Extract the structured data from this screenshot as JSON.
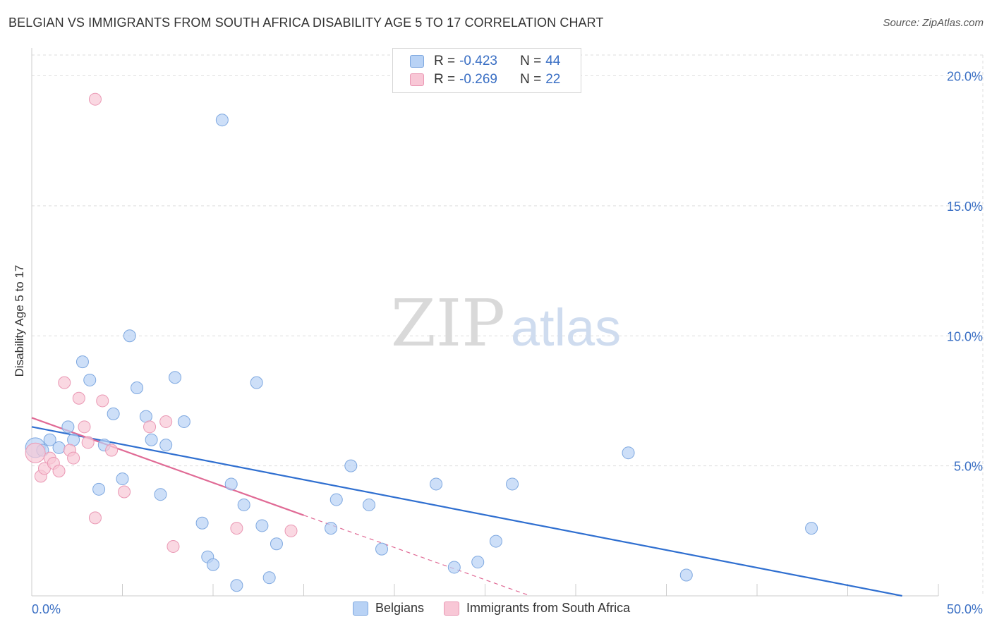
{
  "header": {
    "title": "BELGIAN VS IMMIGRANTS FROM SOUTH AFRICA DISABILITY AGE 5 TO 17 CORRELATION CHART",
    "source": "Source: ZipAtlas.com"
  },
  "watermark": {
    "zip": "ZIP",
    "atlas": "atlas"
  },
  "legend": {
    "rows": [
      {
        "r_label": "R = ",
        "r_value": "-0.423",
        "n_label": "N = ",
        "n_value": "44"
      },
      {
        "r_label": "R = ",
        "r_value": "-0.269",
        "n_label": "N = ",
        "n_value": "22"
      }
    ]
  },
  "colors": {
    "blue_fill": "#b8d2f5",
    "blue_stroke": "#7ea8e0",
    "blue_line": "#2f6fd0",
    "pink_fill": "#f8c7d6",
    "pink_stroke": "#ea98b4",
    "pink_line": "#e06a95",
    "axis_text": "#3a6fc4",
    "grid": "#dddddd"
  },
  "chart_data": {
    "type": "scatter",
    "title": "BELGIAN VS IMMIGRANTS FROM SOUTH AFRICA DISABILITY AGE 5 TO 17 CORRELATION CHART",
    "xlabel": "",
    "ylabel": "Disability Age 5 to 17",
    "xlim": [
      0,
      50
    ],
    "ylim": [
      0,
      20.8
    ],
    "x_tick_labels": [
      "0.0%",
      "50.0%"
    ],
    "y_ticks": [
      5,
      10,
      15,
      20
    ],
    "y_tick_labels": [
      "5.0%",
      "10.0%",
      "15.0%",
      "20.0%"
    ],
    "grid": true,
    "legend_position": "bottom",
    "series": [
      {
        "name": "Belgians",
        "color": "blue",
        "r": -0.423,
        "n": 44,
        "trend": {
          "x0": 0,
          "y0": 6.5,
          "x1": 48,
          "y1": 0
        },
        "points": [
          [
            0.2,
            5.7
          ],
          [
            0.6,
            5.6
          ],
          [
            1.0,
            6.0
          ],
          [
            1.5,
            5.7
          ],
          [
            2.0,
            6.5
          ],
          [
            2.3,
            6.0
          ],
          [
            2.8,
            9.0
          ],
          [
            3.2,
            8.3
          ],
          [
            3.7,
            4.1
          ],
          [
            4.0,
            5.8
          ],
          [
            4.5,
            7.0
          ],
          [
            5.0,
            4.5
          ],
          [
            5.4,
            10.0
          ],
          [
            5.8,
            8.0
          ],
          [
            6.3,
            6.9
          ],
          [
            6.6,
            6.0
          ],
          [
            7.1,
            3.9
          ],
          [
            7.4,
            5.8
          ],
          [
            7.9,
            8.4
          ],
          [
            8.4,
            6.7
          ],
          [
            9.4,
            2.8
          ],
          [
            9.7,
            1.5
          ],
          [
            10.0,
            1.2
          ],
          [
            10.5,
            18.3
          ],
          [
            11.0,
            4.3
          ],
          [
            11.3,
            0.4
          ],
          [
            11.7,
            3.5
          ],
          [
            12.4,
            8.2
          ],
          [
            12.7,
            2.7
          ],
          [
            13.1,
            0.7
          ],
          [
            13.5,
            2.0
          ],
          [
            16.5,
            2.6
          ],
          [
            16.8,
            3.7
          ],
          [
            17.6,
            5.0
          ],
          [
            18.6,
            3.5
          ],
          [
            19.3,
            1.8
          ],
          [
            22.3,
            4.3
          ],
          [
            23.3,
            1.1
          ],
          [
            24.6,
            1.3
          ],
          [
            25.6,
            2.1
          ],
          [
            26.5,
            4.3
          ],
          [
            32.9,
            5.5
          ],
          [
            36.1,
            0.8
          ],
          [
            43.0,
            2.6
          ]
        ]
      },
      {
        "name": "Immigrants from South Africa",
        "color": "pink",
        "r": -0.269,
        "n": 22,
        "trend": {
          "x0": 0,
          "y0": 6.85,
          "x1": 15,
          "y1": 3.1
        },
        "trend_dashed_to": {
          "x1": 27.5,
          "y1": 0
        },
        "points": [
          [
            0.2,
            5.5
          ],
          [
            0.5,
            4.6
          ],
          [
            0.7,
            4.9
          ],
          [
            1.0,
            5.3
          ],
          [
            1.2,
            5.1
          ],
          [
            1.5,
            4.8
          ],
          [
            1.8,
            8.2
          ],
          [
            2.1,
            5.6
          ],
          [
            2.3,
            5.3
          ],
          [
            2.6,
            7.6
          ],
          [
            2.9,
            6.5
          ],
          [
            3.1,
            5.9
          ],
          [
            3.5,
            3.0
          ],
          [
            3.5,
            19.1
          ],
          [
            3.9,
            7.5
          ],
          [
            4.4,
            5.6
          ],
          [
            5.1,
            4.0
          ],
          [
            6.5,
            6.5
          ],
          [
            7.4,
            6.7
          ],
          [
            7.8,
            1.9
          ],
          [
            11.3,
            2.6
          ],
          [
            14.3,
            2.5
          ]
        ]
      }
    ]
  },
  "bottom_legend": {
    "items": [
      {
        "label": "Belgians"
      },
      {
        "label": "Immigrants from South Africa"
      }
    ]
  }
}
